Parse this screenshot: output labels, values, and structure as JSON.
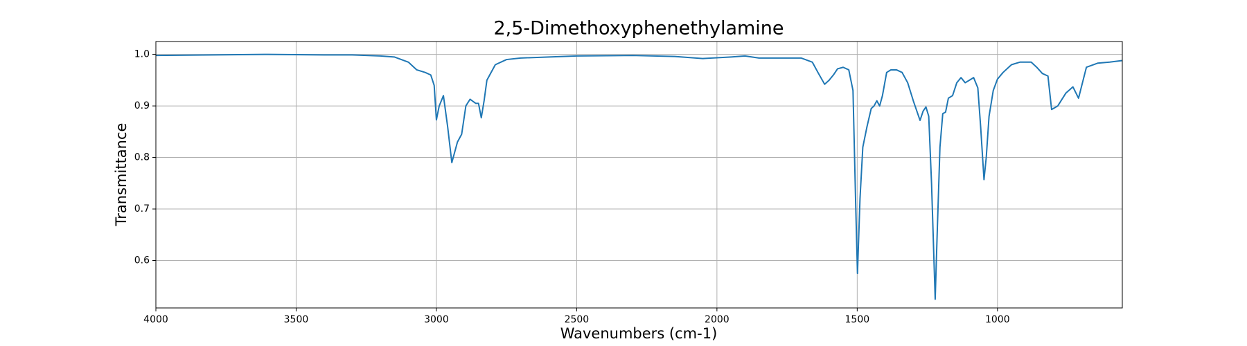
{
  "chart_data": {
    "type": "line",
    "title": "2,5-Dimethoxyphenethylamine",
    "x_label": "Wavenumbers (cm-1)",
    "y_label": "Transmittance",
    "xlim": [
      4000,
      555
    ],
    "ylim": [
      0.508,
      1.025
    ],
    "xticks": [
      4000,
      3500,
      3000,
      2500,
      2000,
      1500,
      1000
    ],
    "yticks": [
      0.6,
      0.7,
      0.8,
      0.9,
      {
        "value": 1,
        "label": "1.0"
      }
    ],
    "grid": true,
    "series": [
      {
        "name": "2,5-Dimethoxyphenethylamine",
        "color": "#1f77b4",
        "x": [
          4000,
          3800,
          3600,
          3400,
          3300,
          3200,
          3150,
          3100,
          3070,
          3040,
          3020,
          3008,
          3000,
          2990,
          2975,
          2960,
          2945,
          2925,
          2910,
          2895,
          2880,
          2860,
          2850,
          2840,
          2830,
          2820,
          2790,
          2750,
          2700,
          2500,
          2300,
          2150,
          2050,
          1950,
          1900,
          1850,
          1700,
          1660,
          1640,
          1616,
          1600,
          1585,
          1570,
          1550,
          1530,
          1515,
          1505,
          1499,
          1490,
          1480,
          1465,
          1450,
          1440,
          1430,
          1420,
          1410,
          1395,
          1380,
          1360,
          1340,
          1320,
          1300,
          1276,
          1265,
          1255,
          1245,
          1235,
          1222,
          1215,
          1205,
          1195,
          1185,
          1175,
          1160,
          1145,
          1130,
          1115,
          1100,
          1085,
          1070,
          1060,
          1048,
          1040,
          1030,
          1015,
          1000,
          980,
          950,
          920,
          880,
          860,
          840,
          820,
          807,
          785,
          756,
          731,
          711,
          683,
          643,
          600,
          555
        ],
        "values": [
          0.998,
          0.999,
          1.0,
          0.999,
          0.999,
          0.997,
          0.995,
          0.985,
          0.97,
          0.965,
          0.96,
          0.94,
          0.873,
          0.9,
          0.92,
          0.86,
          0.79,
          0.83,
          0.845,
          0.9,
          0.913,
          0.905,
          0.905,
          0.877,
          0.91,
          0.95,
          0.98,
          0.99,
          0.993,
          0.997,
          0.998,
          0.996,
          0.992,
          0.995,
          0.997,
          0.993,
          0.993,
          0.985,
          0.965,
          0.942,
          0.95,
          0.96,
          0.972,
          0.975,
          0.97,
          0.93,
          0.7,
          0.575,
          0.72,
          0.82,
          0.86,
          0.895,
          0.9,
          0.91,
          0.9,
          0.92,
          0.965,
          0.97,
          0.97,
          0.965,
          0.945,
          0.91,
          0.872,
          0.89,
          0.898,
          0.88,
          0.75,
          0.525,
          0.65,
          0.82,
          0.885,
          0.888,
          0.915,
          0.92,
          0.945,
          0.955,
          0.945,
          0.95,
          0.955,
          0.935,
          0.86,
          0.757,
          0.8,
          0.88,
          0.93,
          0.952,
          0.965,
          0.98,
          0.985,
          0.985,
          0.975,
          0.963,
          0.958,
          0.893,
          0.9,
          0.925,
          0.937,
          0.915,
          0.975,
          0.983,
          0.985,
          0.988
        ]
      }
    ]
  }
}
